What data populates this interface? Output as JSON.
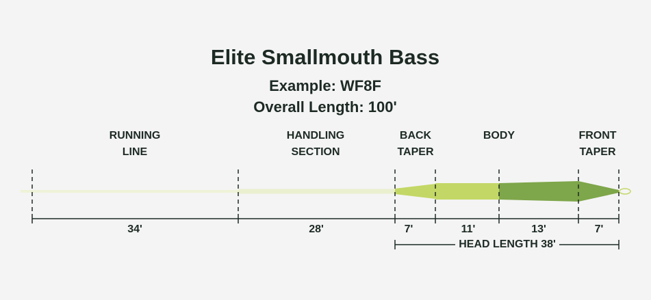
{
  "header": {
    "title": "Elite Smallmouth Bass",
    "example": "Example: WF8F",
    "overall_length": "Overall Length: 100'"
  },
  "labels": [
    [
      "RUNNING",
      "LINE"
    ],
    [
      "HANDLING",
      "SECTION"
    ],
    [
      "BACK",
      "TAPER"
    ],
    [
      "BODY"
    ],
    [
      "FRONT",
      "TAPER"
    ]
  ],
  "measurements": [
    "34'",
    "28'",
    "7'",
    "11'",
    "13'",
    "7'"
  ],
  "head_length": "HEAD LENGTH 38'"
}
